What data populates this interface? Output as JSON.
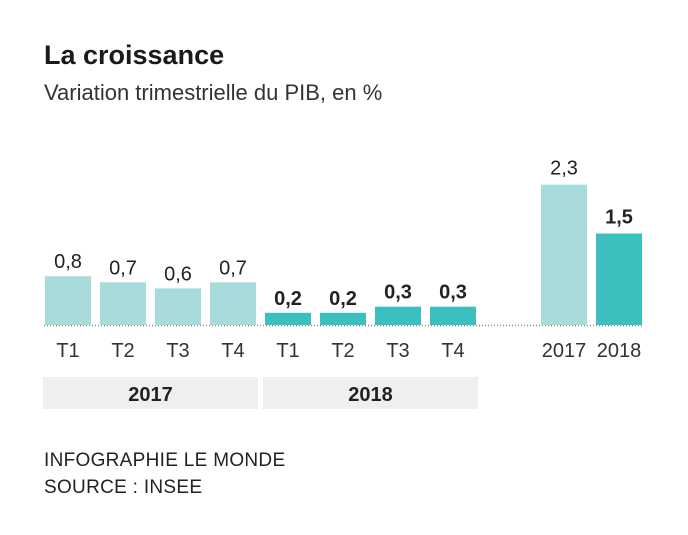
{
  "title": "La croissance",
  "subtitle": "Variation trimestrielle du PIB, en %",
  "chart_data": {
    "type": "bar",
    "title": "La croissance",
    "subtitle": "Variation trimestrielle du PIB, en %",
    "ylim": [
      0,
      2.5
    ],
    "grid": false,
    "groups": [
      {
        "label": "2017",
        "color": "#a8dcdc",
        "bold": false,
        "categories": [
          "T1",
          "T2",
          "T3",
          "T4"
        ],
        "values": [
          0.8,
          0.7,
          0.6,
          0.7
        ],
        "value_labels": [
          "0,8",
          "0,7",
          "0,6",
          "0,7"
        ]
      },
      {
        "label": "2018",
        "color": "#3bbfbf",
        "bold": true,
        "categories": [
          "T1",
          "T2",
          "T3",
          "T4"
        ],
        "values": [
          0.2,
          0.2,
          0.3,
          0.3
        ],
        "value_labels": [
          "0,2",
          "0,2",
          "0,3",
          "0,3"
        ]
      }
    ],
    "annual": {
      "categories": [
        "2017",
        "2018"
      ],
      "values": [
        2.3,
        1.5
      ],
      "value_labels": [
        "2,3",
        "1,5"
      ],
      "colors": [
        "#a8dcdc",
        "#3bbfbf"
      ],
      "bold": [
        false,
        true
      ]
    }
  },
  "footer": {
    "credit": "INFOGRAPHIE LE MONDE",
    "source": "SOURCE : INSEE"
  }
}
